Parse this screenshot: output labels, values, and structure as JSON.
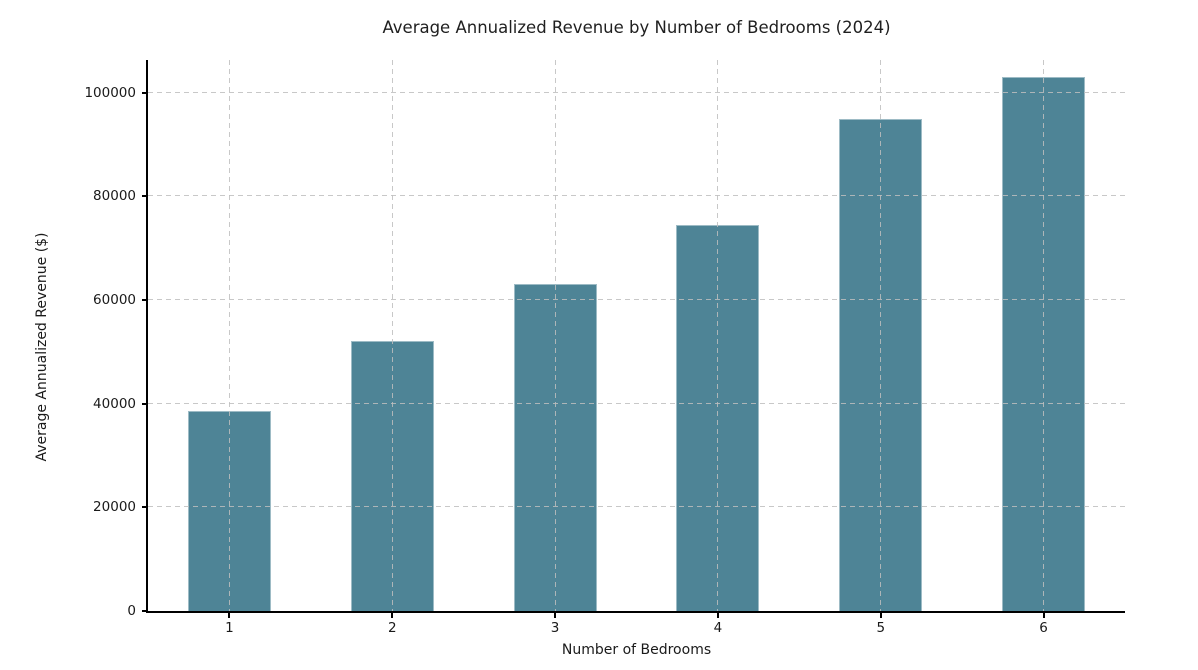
{
  "chart_data": {
    "type": "bar",
    "title": "Average Annualized Revenue by Number of Bedrooms (2024)",
    "xlabel": "Number of Bedrooms",
    "ylabel": "Average Annualized Revenue ($)",
    "categories": [
      "1",
      "2",
      "3",
      "4",
      "5",
      "6"
    ],
    "values": [
      38500,
      52000,
      63000,
      74500,
      95000,
      103000
    ],
    "yticks": [
      0,
      20000,
      40000,
      60000,
      80000,
      100000
    ],
    "ytick_labels": [
      "0",
      "20000",
      "40000",
      "60000",
      "80000",
      "100000"
    ],
    "ylim": [
      0,
      106300
    ],
    "grid": "dashed, x and y, drawn above bars",
    "legend_position": "none",
    "colors": {
      "bar_fill": "#4e8496",
      "grid_line": "#cccccc",
      "axis_spine": "#000000",
      "text": "#1a1a1a",
      "background": "#ffffff"
    }
  }
}
